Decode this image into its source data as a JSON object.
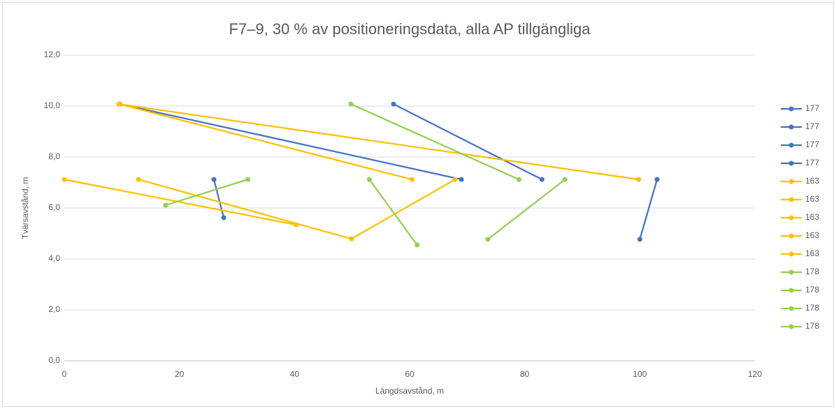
{
  "chart_data": {
    "type": "scatter-lines",
    "title": "F7–9, 30 % av positioneringsdata, alla AP tillgängliga",
    "x_label": "Längdsavstånd, m",
    "y_label": "Tvärsavstånd, m",
    "xlim": [
      0,
      120
    ],
    "xticks": [
      0,
      20,
      40,
      60,
      80,
      100,
      120
    ],
    "ylim": [
      0,
      12
    ],
    "yticks": [
      {
        "value": 0,
        "label": "0,0"
      },
      {
        "value": 2,
        "label": "2,0"
      },
      {
        "value": 4,
        "label": "4,0"
      },
      {
        "value": 6,
        "label": "6,0"
      },
      {
        "value": 8,
        "label": "8,0"
      },
      {
        "value": 10,
        "label": "10,0"
      },
      {
        "value": 12,
        "label": "12,0"
      }
    ],
    "grid": true,
    "legend": "right",
    "series": [
      {
        "name": "177",
        "color": "#4472c4",
        "x": [
          57.2,
          83
        ],
        "values": [
          10.08,
          7.12
        ]
      },
      {
        "name": "177",
        "color": "#4472c4",
        "x": [
          9.6,
          69
        ],
        "values": [
          10.08,
          7.12
        ]
      },
      {
        "name": "177",
        "color": "#4472c4",
        "x": [
          26,
          27.7
        ],
        "values": [
          7.12,
          5.62
        ]
      },
      {
        "name": "177",
        "color": "#4472c4",
        "x": [
          103,
          100
        ],
        "values": [
          7.12,
          4.77
        ]
      },
      {
        "name": "163",
        "color": "#ffc000",
        "x": [
          0,
          40.3
        ],
        "values": [
          7.12,
          5.34
        ]
      },
      {
        "name": "163",
        "color": "#ffc000",
        "x": [
          12.9,
          49.9
        ],
        "values": [
          7.12,
          4.79
        ]
      },
      {
        "name": "163",
        "color": "#ffc000",
        "x": [
          49.9,
          67.9
        ],
        "values": [
          4.79,
          7.12
        ]
      },
      {
        "name": "163",
        "color": "#ffc000",
        "x": [
          9.5,
          60.4
        ],
        "values": [
          10.08,
          7.12
        ]
      },
      {
        "name": "163",
        "color": "#ffc000",
        "x": [
          9.5,
          99.8
        ],
        "values": [
          10.08,
          7.12
        ]
      },
      {
        "name": "178",
        "color": "#92d050",
        "x": [
          17.6,
          31.9
        ],
        "values": [
          6.11,
          7.12
        ]
      },
      {
        "name": "178",
        "color": "#92d050",
        "x": [
          49.8,
          79
        ],
        "values": [
          10.08,
          7.12
        ]
      },
      {
        "name": "178",
        "color": "#92d050",
        "x": [
          53,
          61.3
        ],
        "values": [
          7.12,
          4.55
        ]
      },
      {
        "name": "178",
        "color": "#92d050",
        "x": [
          73.6,
          87
        ],
        "values": [
          4.77,
          7.12
        ]
      }
    ]
  }
}
